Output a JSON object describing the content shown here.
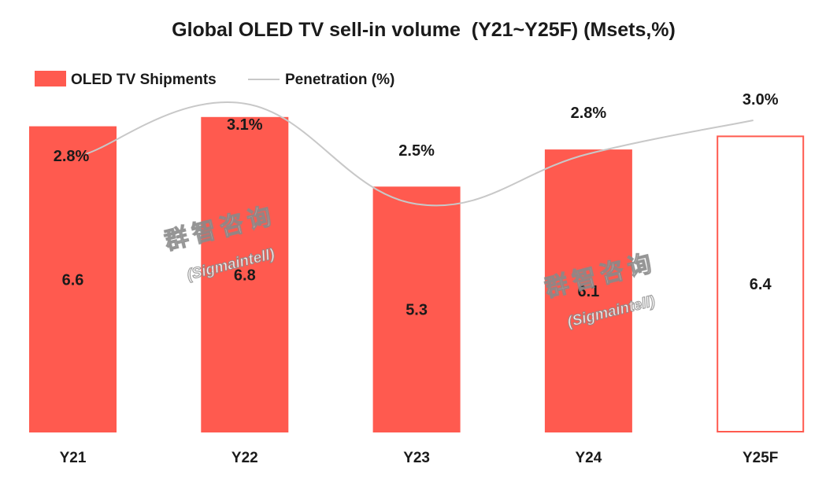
{
  "chart_data": {
    "type": "bar",
    "title": "Global OLED TV sell-in volume  (Y21~Y25F) (Msets,%)",
    "categories": [
      "Y21",
      "Y22",
      "Y23",
      "Y24",
      "Y25F"
    ],
    "series": [
      {
        "name": "OLED TV Shipments",
        "type": "bar",
        "values": [
          6.6,
          6.8,
          5.3,
          6.1,
          6.4
        ],
        "labels": [
          "6.6",
          "6.8",
          "5.3",
          "6.1",
          "6.4"
        ],
        "forecast": [
          false,
          false,
          false,
          false,
          true
        ]
      },
      {
        "name": "Penetration (%)",
        "type": "line",
        "values": [
          2.8,
          3.1,
          2.5,
          2.8,
          3.0
        ],
        "labels": [
          "2.8%",
          "3.1%",
          "2.5%",
          "2.8%",
          "3.0%"
        ]
      }
    ],
    "xlabel": "",
    "ylabel": "",
    "ylim": [
      0,
      7
    ],
    "legend_position": "top-left"
  },
  "colors": {
    "bar_fill": "#ff5a4f",
    "forecast_border": "#ff5a4f",
    "line": "#c8c8c8"
  },
  "watermark": {
    "line1": "群智咨询",
    "line2": "(Sigmaintell)"
  }
}
